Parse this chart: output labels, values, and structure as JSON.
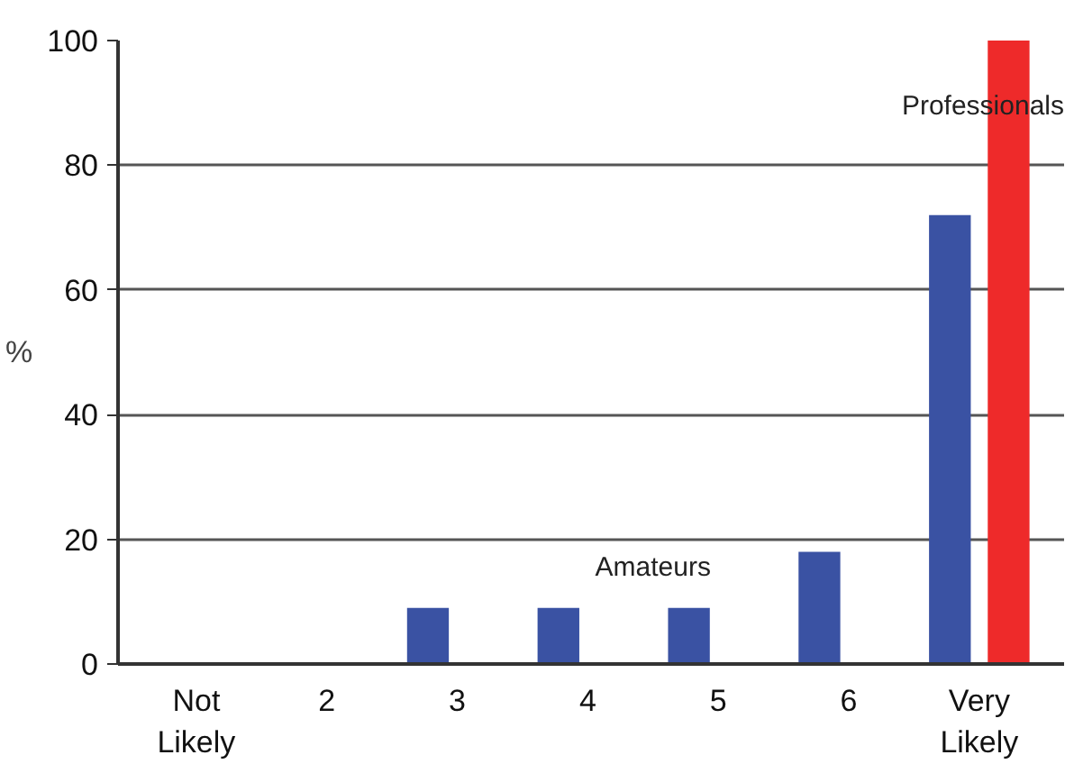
{
  "chart_data": {
    "type": "bar",
    "ylabel": "%",
    "categories": [
      "Not Likely",
      "2",
      "3",
      "4",
      "5",
      "6",
      "Very Likely"
    ],
    "series": [
      {
        "name": "Amateurs",
        "color": "#3a52a3",
        "values": [
          0,
          0,
          9,
          9,
          9,
          18,
          72
        ]
      },
      {
        "name": "Professionals",
        "color": "#ee2a2a",
        "values": [
          0,
          0,
          0,
          0,
          0,
          0,
          100
        ]
      }
    ],
    "ylim": [
      0,
      100
    ],
    "yticks": [
      0,
      20,
      40,
      60,
      80,
      100
    ],
    "grid": "y"
  }
}
